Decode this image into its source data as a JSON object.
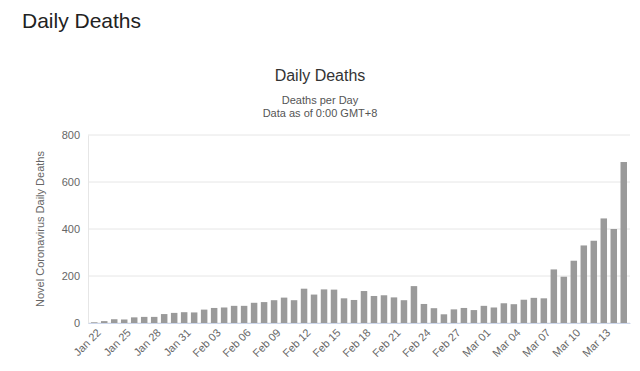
{
  "header": {
    "title": "Daily Deaths"
  },
  "chart_data": {
    "type": "bar",
    "title": "Daily Deaths",
    "subtitle": [
      "Deaths per Day",
      "Data as of 0:00 GMT+8"
    ],
    "y_label": "Novel Coronavirus Daily Deaths",
    "categories": [
      "Jan 22",
      null,
      null,
      "Jan 25",
      null,
      null,
      "Jan 28",
      null,
      null,
      "Jan 31",
      null,
      null,
      "Feb 03",
      null,
      null,
      "Feb 06",
      null,
      null,
      "Feb 09",
      null,
      null,
      "Feb 12",
      null,
      null,
      "Feb 15",
      null,
      null,
      "Feb 18",
      null,
      null,
      "Feb 21",
      null,
      null,
      "Feb 24",
      null,
      null,
      "Feb 27",
      null,
      null,
      "Mar 01",
      null,
      null,
      "Mar 04",
      null,
      null,
      "Mar 07",
      null,
      null,
      "Mar 10",
      null,
      null,
      "Mar 13",
      null,
      null
    ],
    "values": [
      3,
      8,
      16,
      15,
      24,
      26,
      26,
      38,
      43,
      46,
      45,
      57,
      64,
      66,
      73,
      73,
      86,
      89,
      97,
      108,
      97,
      146,
      121,
      143,
      142,
      105,
      98,
      136,
      115,
      118,
      109,
      97,
      157,
      81,
      63,
      37,
      58,
      64,
      55,
      73,
      66,
      84,
      80,
      99,
      107,
      105,
      228,
      197,
      265,
      330,
      350,
      445,
      400,
      685
    ],
    "color": "#9a9a9a",
    "ylim": [
      0,
      800
    ],
    "yticks": [
      0,
      200,
      400,
      600,
      800
    ],
    "grid": true
  }
}
